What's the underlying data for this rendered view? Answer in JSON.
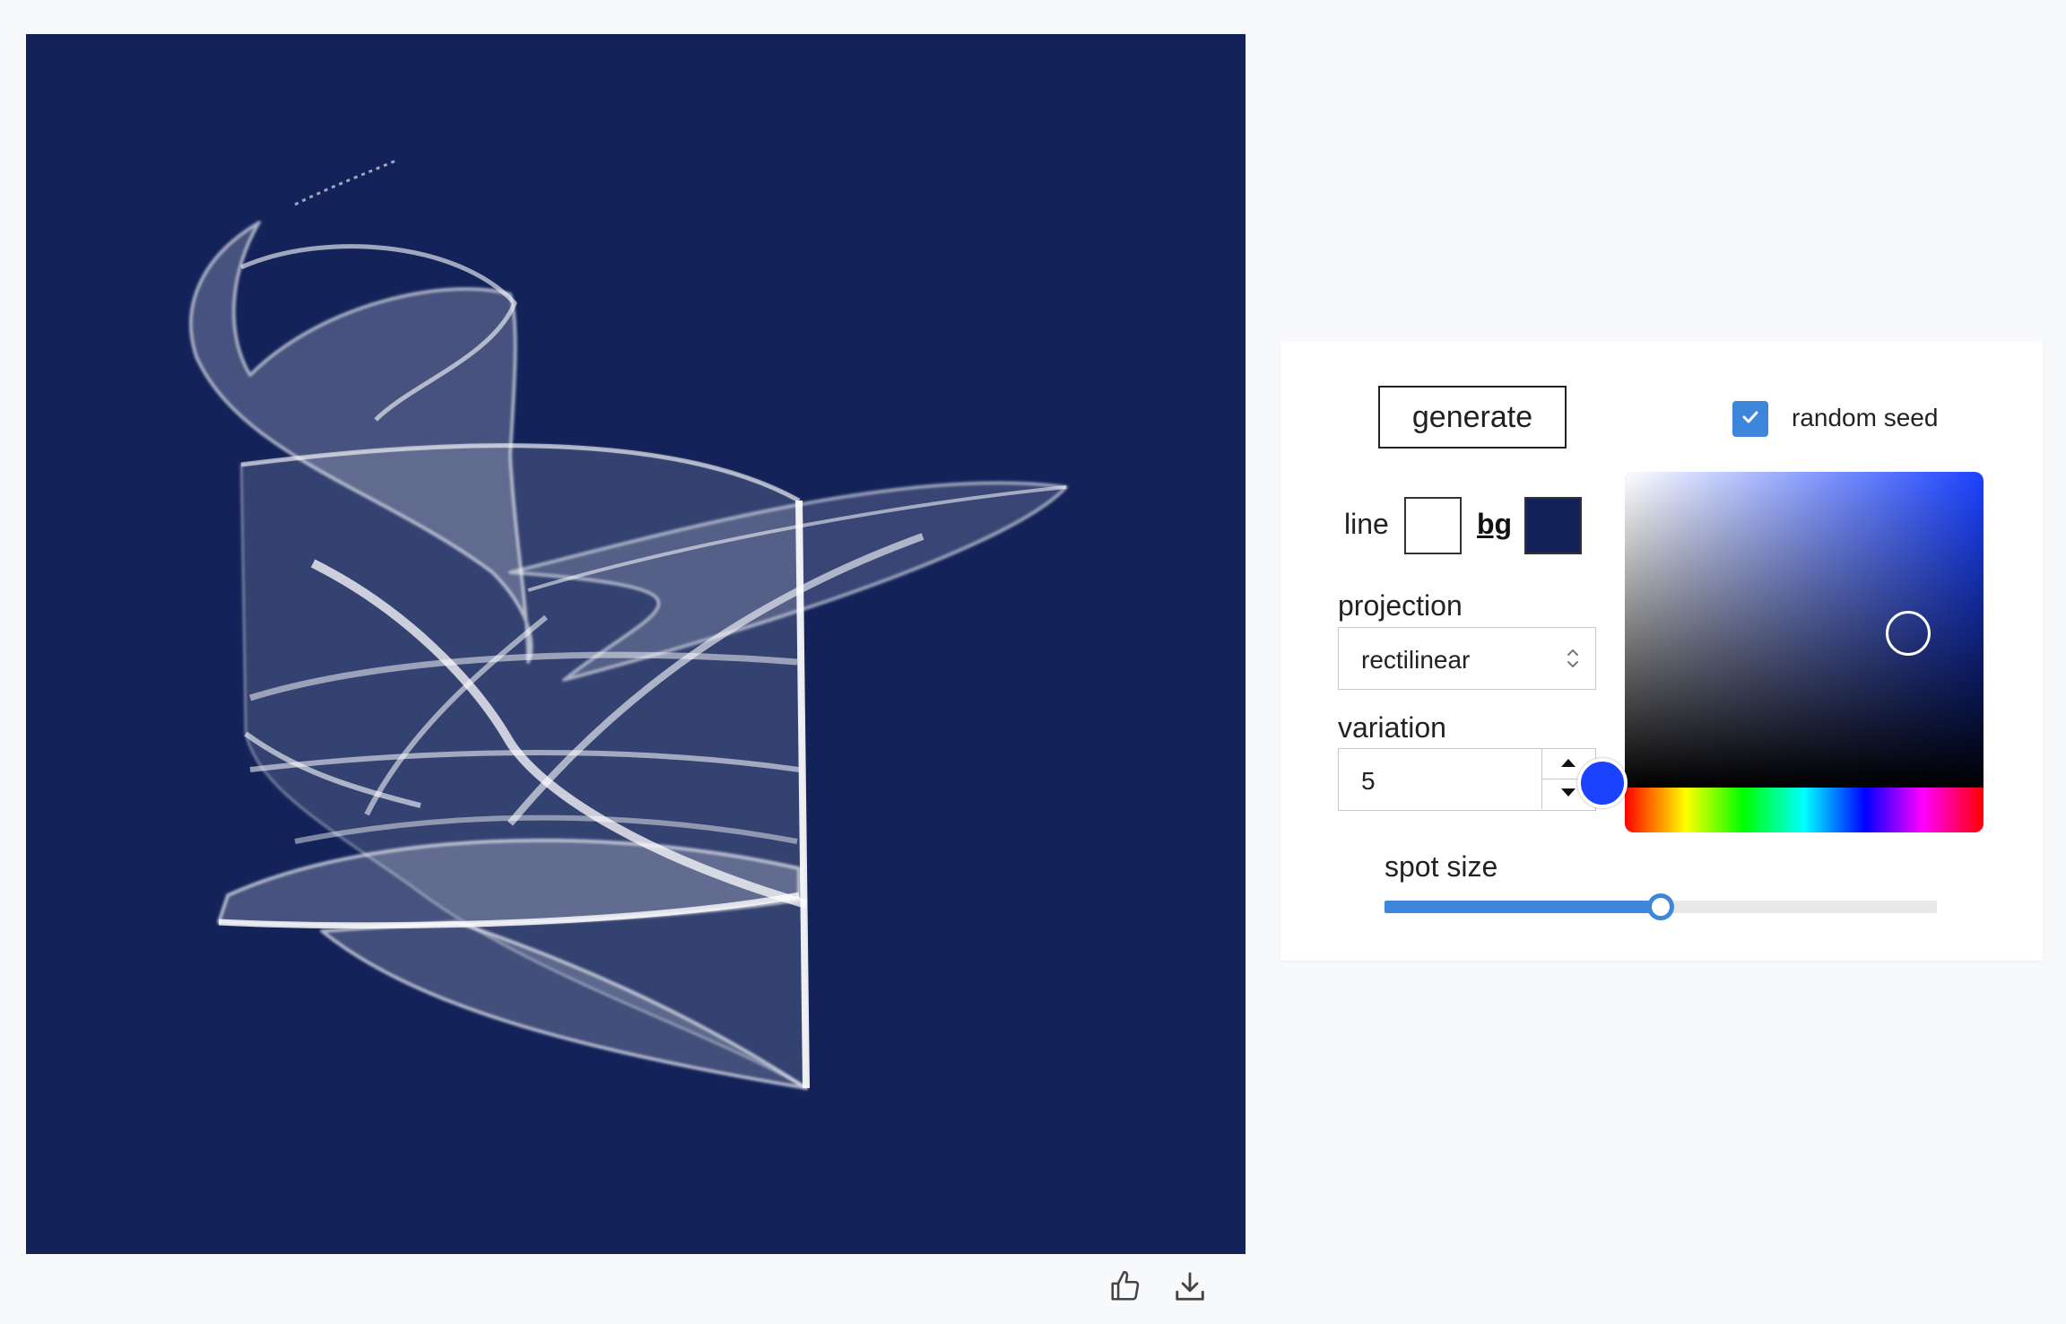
{
  "canvas": {
    "background": "#13235a",
    "line_color": "#ffffff"
  },
  "footer_actions": [
    {
      "icon": "thumbs-up-icon"
    },
    {
      "icon": "download-icon"
    }
  ],
  "controls": {
    "generate_label": "generate",
    "random_seed": {
      "label": "random seed",
      "checked": true
    },
    "line_label": "line",
    "line_color": "#ffffff",
    "bg_label": "bg",
    "bg_color": "#13235a",
    "projection": {
      "label": "projection",
      "value": "rectilinear"
    },
    "variation": {
      "label": "variation",
      "value": "5"
    },
    "color_picker": {
      "hue_color": "#1a42ff",
      "selected_color": "#13235a"
    },
    "spot_size": {
      "label": "spot size",
      "fraction": 0.5
    }
  }
}
